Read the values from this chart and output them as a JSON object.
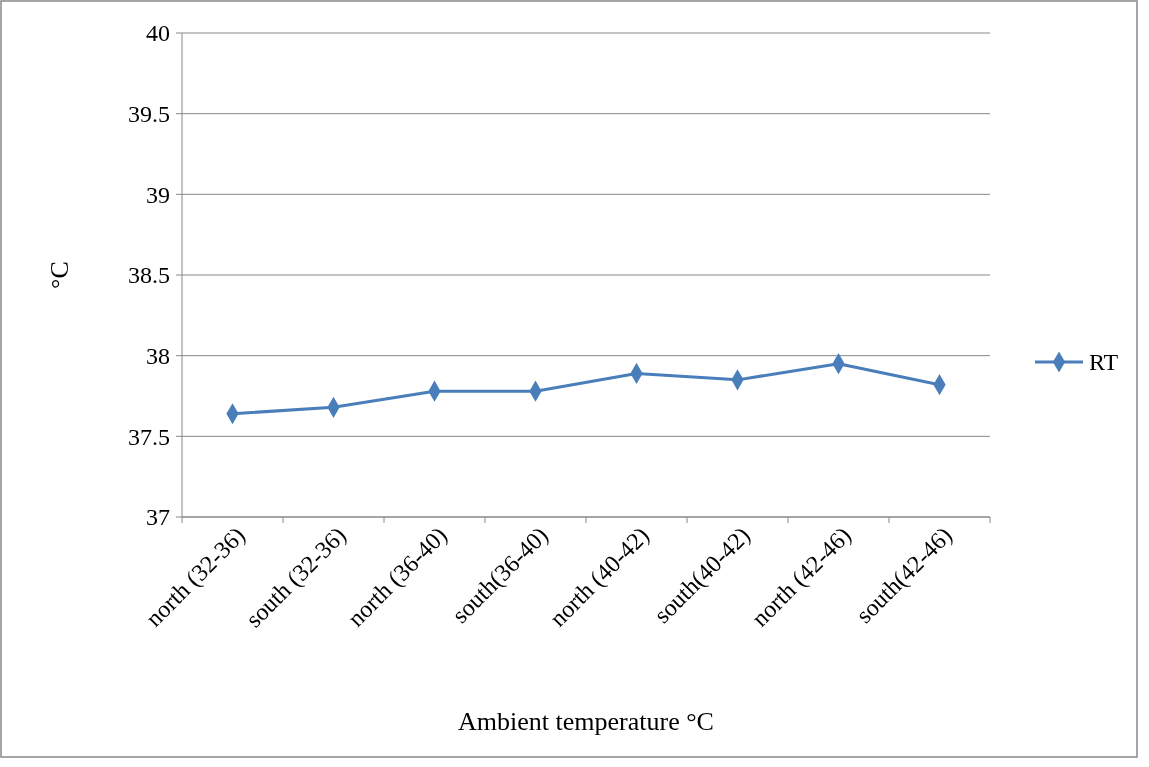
{
  "chart_data": {
    "type": "line",
    "xlabel": "Ambient temperature °C",
    "ylabel": "°C",
    "categories": [
      "north (32-36)",
      "south (32-36)",
      "north (36-40)",
      "south(36-40)",
      "north (40-42)",
      "south(40-42)",
      "north (42-46)",
      "south(42-46)"
    ],
    "series": [
      {
        "name": "RT",
        "color": "#4a7ebb",
        "values": [
          37.64,
          37.68,
          37.78,
          37.78,
          37.89,
          37.85,
          37.95,
          37.82
        ]
      }
    ],
    "ylim": [
      37,
      40
    ],
    "yticks": [
      37,
      37.5,
      38,
      38.5,
      39,
      39.5,
      40
    ],
    "grid": "y",
    "legend": "right",
    "marker": "diamond",
    "line_style": "solid"
  }
}
